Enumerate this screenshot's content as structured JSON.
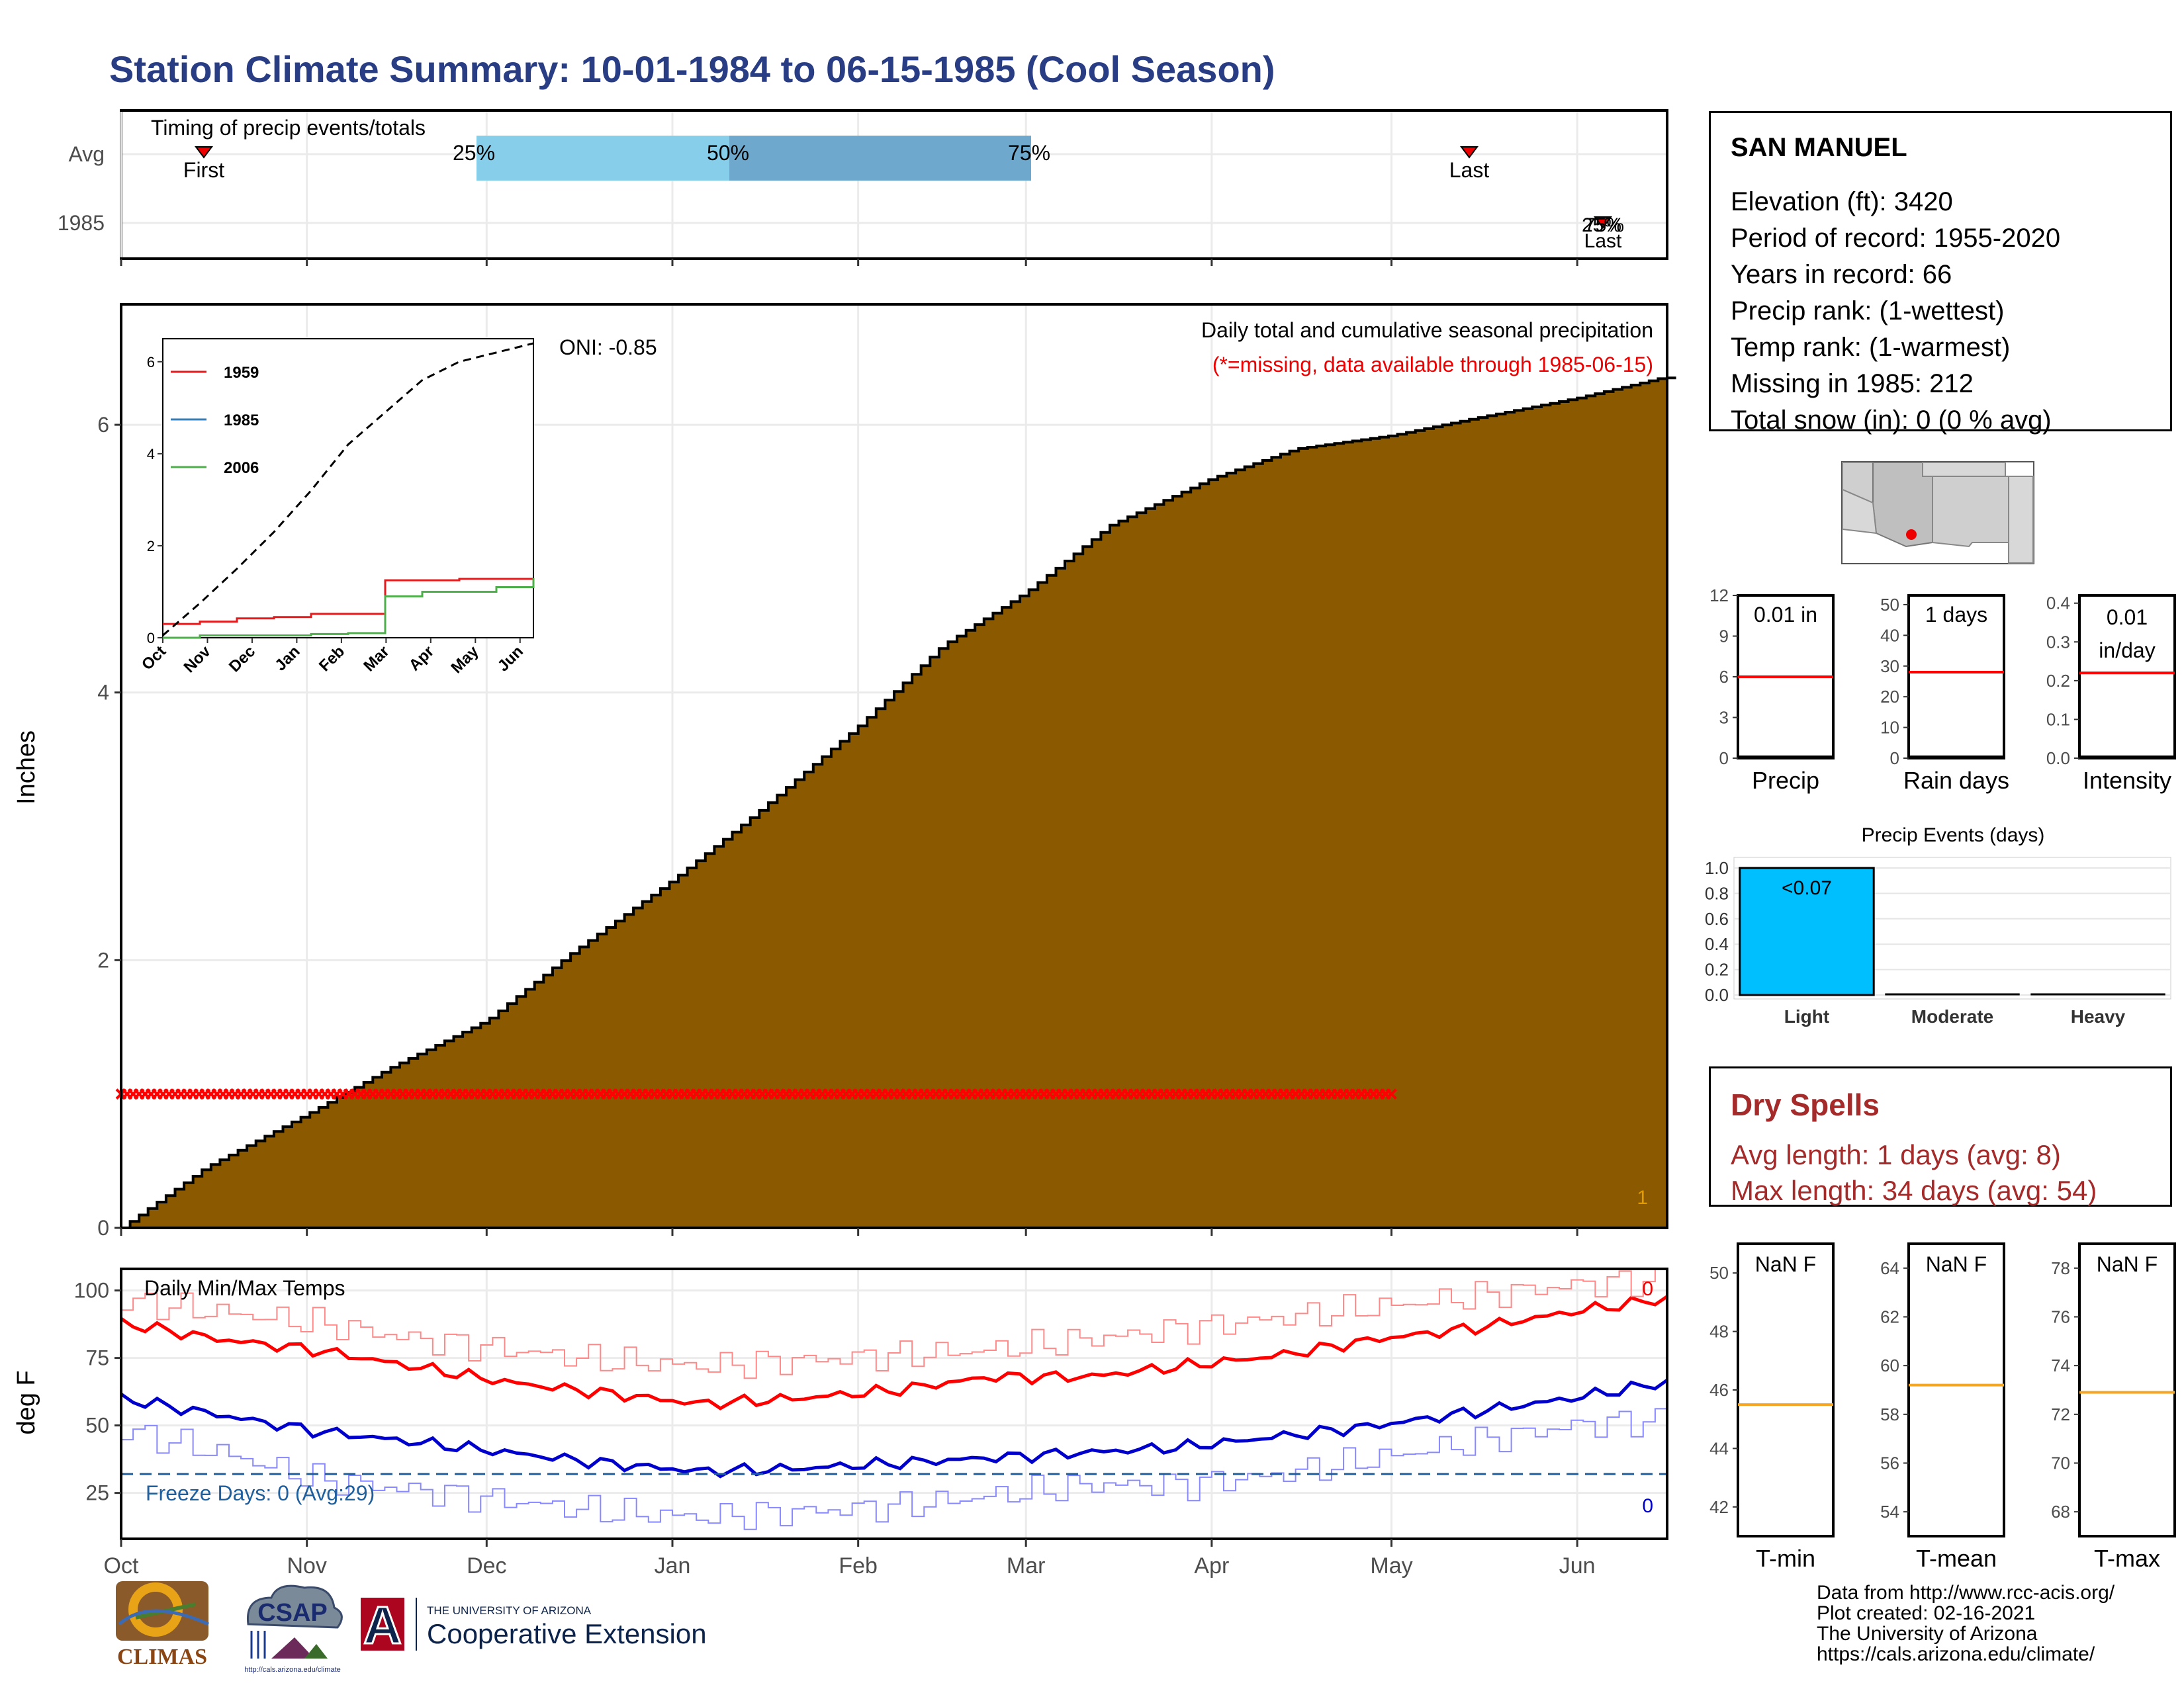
{
  "title": "Station Climate Summary: 10-01-1984 to 06-15-1985 (Cool Season)",
  "timing_panel": {
    "label": "Timing of precip events/totals",
    "rows": [
      "Avg",
      "1985"
    ],
    "avg": {
      "first_label": "First",
      "last_label": "Last",
      "p25": "25%",
      "p50": "50%",
      "p75": "75%"
    },
    "y1985": {
      "label_a": "25%",
      "label_b": "75%",
      "last_label": "Last"
    }
  },
  "info": {
    "station": "SAN MANUEL",
    "lines": [
      "Elevation (ft): 3420",
      "Period of record: 1955-2020",
      "Years in record: 66",
      "Precip rank:  (1-wettest)",
      "Temp rank:  (1-warmest)",
      "Missing in 1985: 212",
      "Total snow (in): 0 (0 % avg)"
    ]
  },
  "precip_panel": {
    "title": "Daily total and cumulative seasonal precipitation",
    "missing_note": "(*=missing, data available through 1985-06-15)",
    "oni": "ONI: -0.85",
    "ylabel": "Inches",
    "corner_count": "1"
  },
  "temp_panel": {
    "title": "Daily Min/Max Temps",
    "ylabel": "deg F",
    "freeze": "Freeze Days: 0 (Avg:29)",
    "max_count": "0",
    "min_count": "0"
  },
  "mini_bars": [
    {
      "label": "Precip",
      "value_text": "0.01 in",
      "ticks": [
        "0",
        "3",
        "6",
        "9",
        "12"
      ],
      "avg": 6,
      "max": 12
    },
    {
      "label": "Rain days",
      "value_text": "1 days",
      "ticks": [
        "0",
        "10",
        "20",
        "30",
        "40",
        "50"
      ],
      "avg": 28,
      "max": 53
    },
    {
      "label": "Intensity",
      "value_text_1": "0.01",
      "value_text_2": "in/day",
      "ticks": [
        "0.0",
        "0.1",
        "0.2",
        "0.3",
        "0.4"
      ],
      "avg": 0.22,
      "max": 0.42
    }
  ],
  "events_panel": {
    "title": "Precip Events (days)",
    "categories": [
      "Light",
      "Moderate",
      "Heavy"
    ],
    "bar_label": "<0.07",
    "ticks": [
      "0.0",
      "0.2",
      "0.4",
      "0.6",
      "0.8",
      "1.0"
    ]
  },
  "dry_spells": {
    "title": "Dry Spells",
    "avg": "Avg length: 1 days (avg: 8)",
    "max": "Max length: 34 days (avg: 54)"
  },
  "temp_boxes": [
    {
      "label": "T-min",
      "value_text": "NaN F",
      "ticks": [
        "42",
        "44",
        "46",
        "48",
        "50"
      ],
      "avg": 45.5
    },
    {
      "label": "T-mean",
      "value_text": "NaN F",
      "ticks": [
        "54",
        "56",
        "58",
        "60",
        "62",
        "64"
      ],
      "avg": 59.2
    },
    {
      "label": "T-max",
      "value_text": "NaN F",
      "ticks": [
        "68",
        "70",
        "72",
        "74",
        "76",
        "78"
      ],
      "avg": 72.9
    }
  ],
  "footer": {
    "lines": [
      "Data from http://www.rcc-acis.org/",
      "Plot created: 02-16-2021",
      "The University of Arizona",
      "https://cals.arizona.edu/climate/"
    ]
  },
  "logos": {
    "climas": "CLIMAS",
    "csap": "CSAP",
    "csap_url": "http://cals.arizona.edu/climate",
    "ua_top": "THE UNIVERSITY OF ARIZONA",
    "ua_bottom": "Cooperative Extension",
    "ua_letter": "A"
  },
  "chart_data": [
    {
      "type": "area",
      "title": "Daily total and cumulative seasonal precipitation",
      "ylabel": "Inches",
      "x_ticks": [
        "Oct",
        "Nov",
        "Dec",
        "Jan",
        "Feb",
        "Mar",
        "Apr",
        "May",
        "Jun"
      ],
      "ylim": [
        0,
        6.9
      ],
      "y_ticks": [
        0,
        2,
        4,
        6
      ],
      "series": [
        {
          "name": "cumulative average",
          "x": [
            "Oct 1",
            "Oct 15",
            "Nov 1",
            "Nov 15",
            "Dec 1",
            "Dec 15",
            "Jan 1",
            "Jan 15",
            "Feb 1",
            "Feb 15",
            "Mar 1",
            "Mar 15",
            "Apr 1",
            "Apr 15",
            "May 1",
            "May 15",
            "Jun 1",
            "Jun 15"
          ],
          "values": [
            0,
            0.45,
            0.85,
            1.2,
            1.55,
            2.05,
            2.6,
            3.1,
            3.75,
            4.35,
            4.75,
            5.25,
            5.6,
            5.82,
            5.92,
            6.05,
            6.2,
            6.35
          ]
        },
        {
          "name": "missing markers",
          "y": 1.0,
          "x_range": [
            "Oct 1",
            "May 1"
          ]
        }
      ]
    },
    {
      "type": "line",
      "title": "",
      "x_ticks": [
        "Oct",
        "Nov",
        "Dec",
        "Jan",
        "Feb",
        "Mar",
        "Apr",
        "May",
        "Jun"
      ],
      "ylim": [
        0,
        6.5
      ],
      "y_ticks": [
        0,
        2,
        4,
        6
      ],
      "series": [
        {
          "name": "1959",
          "values": [
            0.3,
            0.35,
            0.42,
            0.45,
            0.52,
            0.52,
            1.25,
            1.25,
            1.28,
            1.28,
            1.28
          ]
        },
        {
          "name": "1985",
          "values": []
        },
        {
          "name": "2006",
          "values": [
            0,
            0.05,
            0.05,
            0.05,
            0.08,
            0.1,
            0.9,
            1.0,
            1.0,
            1.1,
            1.3
          ]
        },
        {
          "name": "average",
          "values": [
            0.05,
            0.75,
            1.5,
            2.3,
            3.2,
            4.2,
            4.9,
            5.6,
            6.0,
            6.2,
            6.4
          ]
        }
      ]
    },
    {
      "type": "line",
      "title": "Daily Min/Max Temps",
      "ylabel": "deg F",
      "x_ticks": [
        "Oct",
        "Nov",
        "Dec",
        "Jan",
        "Feb",
        "Mar",
        "Apr",
        "May",
        "Jun"
      ],
      "ylim": [
        8,
        108
      ],
      "y_ticks": [
        25,
        50,
        75,
        100
      ],
      "freeze_line": 32,
      "series": [
        {
          "name": "avg max",
          "values": [
            88,
            82,
            78,
            72,
            66,
            62,
            58,
            60,
            63,
            68,
            68,
            72,
            76,
            82,
            86,
            92,
            97
          ]
        },
        {
          "name": "record max",
          "values": [
            96,
            92,
            88,
            82,
            78,
            74,
            72,
            74,
            76,
            78,
            82,
            86,
            90,
            94,
            98,
            102,
            104
          ]
        },
        {
          "name": "avg min",
          "values": [
            60,
            54,
            48,
            44,
            40,
            36,
            33,
            34,
            36,
            38,
            40,
            42,
            46,
            50,
            55,
            60,
            66
          ]
        },
        {
          "name": "record min",
          "values": [
            48,
            40,
            30,
            26,
            22,
            18,
            16,
            18,
            20,
            24,
            28,
            28,
            32,
            38,
            44,
            50,
            52
          ]
        }
      ]
    },
    {
      "type": "bar",
      "title": "Precip Events (days)",
      "categories": [
        "Light",
        "Moderate",
        "Heavy"
      ],
      "values": [
        1,
        0,
        0
      ],
      "ylim": [
        0,
        1.05
      ]
    }
  ]
}
